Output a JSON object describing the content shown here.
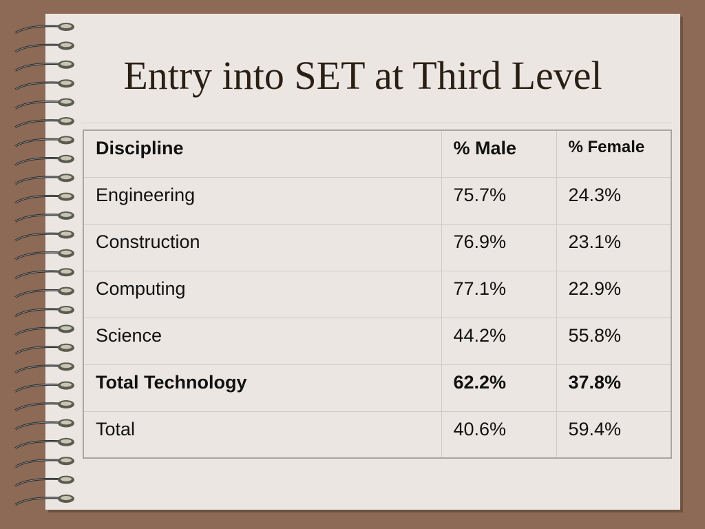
{
  "slide": {
    "title": "Entry into SET at Third Level"
  },
  "table": {
    "columns": [
      "Discipline",
      "% Male",
      "% Female"
    ],
    "rows": [
      {
        "discipline": "Engineering",
        "male": "75.7%",
        "female": "24.3%",
        "bold": false
      },
      {
        "discipline": "Construction",
        "male": "76.9%",
        "female": "23.1%",
        "bold": false
      },
      {
        "discipline": "Computing",
        "male": "77.1%",
        "female": "22.9%",
        "bold": false
      },
      {
        "discipline": "Science",
        "male": "44.2%",
        "female": "55.8%",
        "bold": false
      },
      {
        "discipline": "Total Technology",
        "male": "62.2%",
        "female": "37.8%",
        "bold": true
      },
      {
        "discipline": "Total",
        "male": "40.6%",
        "female": "59.4%",
        "bold": false
      }
    ]
  },
  "colors": {
    "background": "#8d6a55",
    "page": "#ebe6e2",
    "title_text": "#2a1f14"
  },
  "icons": [
    "spiral-binding-icon"
  ]
}
